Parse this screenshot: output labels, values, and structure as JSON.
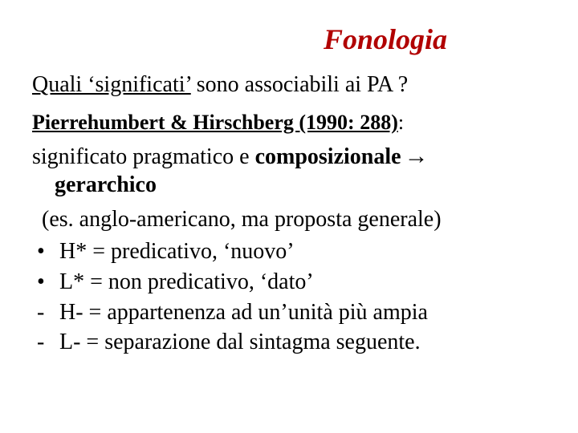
{
  "colors": {
    "title": "#b10000",
    "text": "#000000",
    "background": "#ffffff"
  },
  "typography": {
    "family": "Times New Roman",
    "title_fontsize_pt": 36,
    "body_fontsize_pt": 28,
    "ref_fontsize_pt": 26
  },
  "title": "Fonologia",
  "question": {
    "lead": "Quali ‘significati’",
    "rest": " sono associabili ai PA ?"
  },
  "reference": {
    "authors": "Pierrehumbert & Hirschberg (1990: 288)",
    "suffix": ":"
  },
  "meaning": {
    "line1_plain": "significato pragmatico e ",
    "line1_bold": "composizionale",
    "arrow": "→",
    "line2_bold": "gerarchico"
  },
  "note": "(es. anglo-americano, ma proposta generale)",
  "items": [
    {
      "bullet": "•",
      "text": "H* = predicativo, ‘nuovo’"
    },
    {
      "bullet": "•",
      "text": "L* = non predicativo, ‘dato’"
    },
    {
      "bullet": "-",
      "text": "H- = appartenenza ad un’unità più ampia"
    },
    {
      "bullet": "-",
      "text": "L- = separazione dal sintagma seguente."
    }
  ]
}
